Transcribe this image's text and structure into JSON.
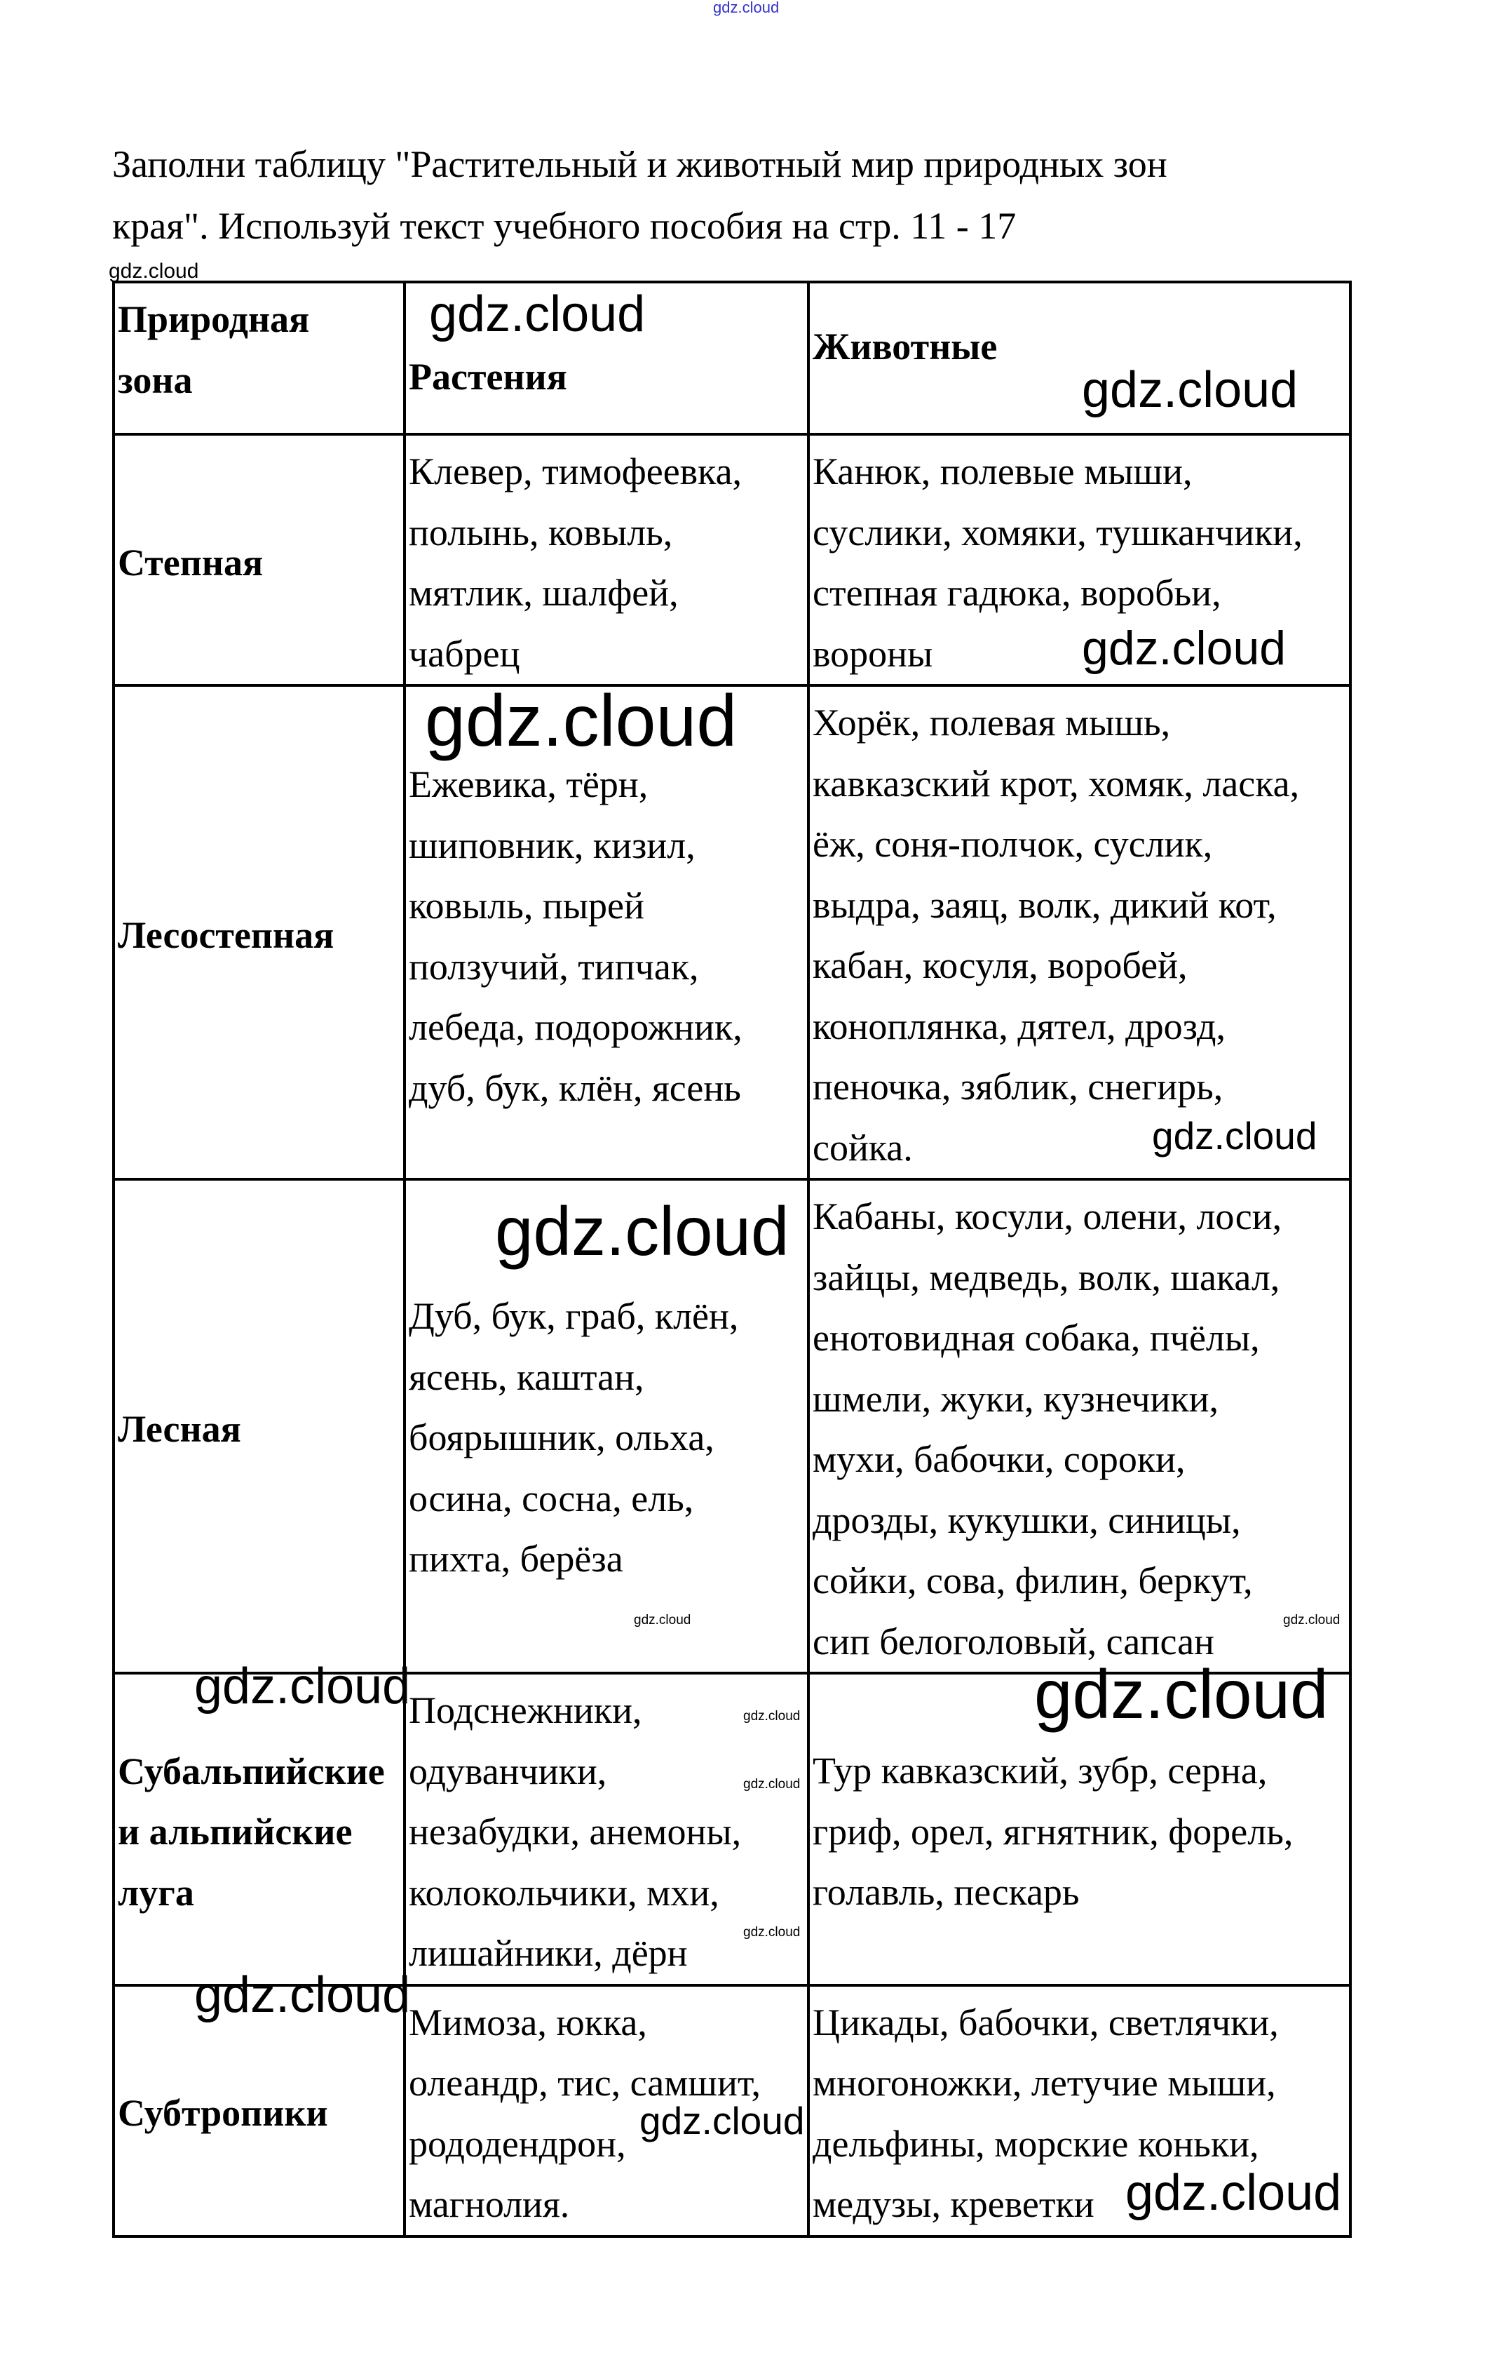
{
  "intro": [
    "Заполни таблицу \"Растительный и животный мир природных зон",
    "края\". Используй текст учебного пособия на стр. 11 - 17"
  ],
  "table": {
    "headers": {
      "zone": [
        "Природная",
        "зона"
      ],
      "plants": "Растения",
      "animals": "Животные"
    },
    "rows": [
      {
        "zone": [
          "Степная"
        ],
        "plants": [
          " Клевер, тимофеевка,",
          "полынь, ковыль,",
          "мятлик, шалфей,",
          "чабрец"
        ],
        "animals": [
          "Канюк, полевые мыши,",
          "суслики, хомяки, тушканчики,",
          "степная гадюка, воробьи,",
          "вороны"
        ]
      },
      {
        "zone": [
          "Лесостепная"
        ],
        "plants": [
          " Ежевика, тёрн,",
          "шиповник, кизил,",
          "ковыль, пырей",
          "ползучий, типчак,",
          "лебеда, подорожник,",
          "дуб, бук, клён, ясень"
        ],
        "animals": [
          " Хорёк, полевая мышь,",
          "кавказский крот, хомяк, ласка,",
          "ёж, соня-полчок, суслик,",
          "выдра, заяц, волк, дикий кот,",
          "кабан, косуля, воробей,",
          "коноплянка, дятел, дрозд,",
          "пеночка, зяблик, снегирь,",
          "сойка."
        ]
      },
      {
        "zone": [
          "Лесная"
        ],
        "plants": [
          " Дуб, бук, граб, клён,",
          "ясень, каштан,",
          "боярышник, ольха,",
          "осина, сосна, ель,",
          "пихта, берёза"
        ],
        "animals": [
          " Кабаны, косули, олени, лоси,",
          "зайцы, медведь, волк, шакал,",
          "енотовидная собака, пчёлы,",
          "шмели, жуки, кузнечики,",
          "мухи, бабочки, сороки,",
          "дрозды, кукушки, синицы,",
          "сойки, сова, филин, беркут,",
          "сип белоголовый, сапсан"
        ]
      },
      {
        "zone": [
          "Субальпийские",
          "и альпийские",
          "луга"
        ],
        "plants": [
          " Подснежники,",
          "одуванчики,",
          "незабудки, анемоны,",
          "колокольчики, мхи,",
          "лишайники, дёрн"
        ],
        "animals": [
          " Тур кавказский, зубр, серна,",
          "гриф, орел, ягнятник, форель,",
          "голавль, пескарь"
        ]
      },
      {
        "zone": [
          "Субтропики"
        ],
        "plants": [
          " Мимоза, юкка,",
          "олеандр, тис, самшит,",
          "рододендрон,",
          "магнолия."
        ],
        "animals": [
          " Цикады, бабочки, светлячки,",
          "многоножки, летучие мыши,",
          "дельфины, морские коньки,",
          "медузы, креветки"
        ]
      }
    ]
  },
  "watermark": "gdz.cloud",
  "watermark_top_color": "#3333cc"
}
